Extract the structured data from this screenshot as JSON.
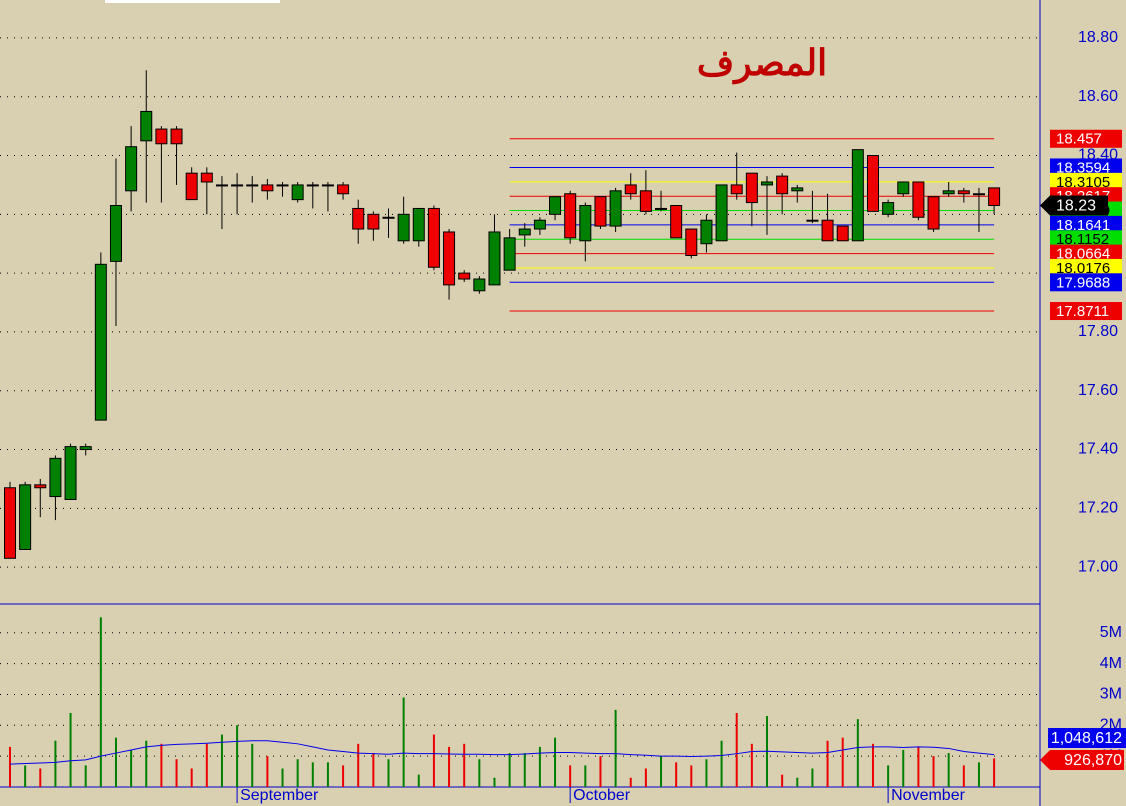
{
  "chart_data": {
    "type": "candlestick",
    "title": "المصرف",
    "categories": [
      null,
      null,
      null,
      null,
      null,
      null,
      null,
      null,
      null,
      null,
      null,
      null,
      null,
      null,
      null,
      "September",
      null,
      null,
      null,
      null,
      null,
      null,
      null,
      null,
      null,
      null,
      null,
      null,
      null,
      null,
      null,
      null,
      null,
      null,
      null,
      null,
      null,
      "October",
      null,
      null,
      null,
      null,
      null,
      null,
      null,
      null,
      null,
      null,
      null,
      null,
      null,
      null,
      null,
      null,
      null,
      null,
      null,
      null,
      "November",
      null,
      null,
      null,
      null,
      null,
      null,
      null
    ],
    "open": [
      17.27,
      17.06,
      17.28,
      17.24,
      17.23,
      17.4,
      17.5,
      18.04,
      18.28,
      18.45,
      18.49,
      18.49,
      18.34,
      18.34,
      18.3,
      18.3,
      18.3,
      18.3,
      18.3,
      18.25,
      18.3,
      18.3,
      18.3,
      18.22,
      18.2,
      18.19,
      18.11,
      18.11,
      18.22,
      18.14,
      18.0,
      17.94,
      17.96,
      18.01,
      18.13,
      18.15,
      18.2,
      18.27,
      18.11,
      18.26,
      18.16,
      18.3,
      18.28,
      18.22,
      18.23,
      18.15,
      18.1,
      18.11,
      18.3,
      18.34,
      18.3,
      18.33,
      18.28,
      18.18,
      18.18,
      18.16,
      18.11,
      18.4,
      18.2,
      18.27,
      18.31,
      18.26,
      18.27,
      18.28,
      18.27,
      18.29
    ],
    "high": [
      17.29,
      17.29,
      17.3,
      17.38,
      17.42,
      17.42,
      18.07,
      18.39,
      18.5,
      18.69,
      18.5,
      18.5,
      18.36,
      18.36,
      18.33,
      18.34,
      18.33,
      18.32,
      18.31,
      18.31,
      18.31,
      18.31,
      18.31,
      18.25,
      18.21,
      18.22,
      18.26,
      18.22,
      18.23,
      18.15,
      18.01,
      17.99,
      18.2,
      18.15,
      18.17,
      18.19,
      18.26,
      18.28,
      18.24,
      18.26,
      18.29,
      18.34,
      18.35,
      18.28,
      18.23,
      18.15,
      18.2,
      18.3,
      18.41,
      18.34,
      18.33,
      18.34,
      18.3,
      18.28,
      18.27,
      18.16,
      18.42,
      18.4,
      18.25,
      18.31,
      18.31,
      18.26,
      18.31,
      18.29,
      18.29,
      18.29
    ],
    "low": [
      17.03,
      17.06,
      17.17,
      17.16,
      17.23,
      17.38,
      17.5,
      17.82,
      18.21,
      18.24,
      18.24,
      18.3,
      18.25,
      18.2,
      18.15,
      18.2,
      18.24,
      18.25,
      18.26,
      18.24,
      18.22,
      18.21,
      18.25,
      18.1,
      18.11,
      18.12,
      18.1,
      18.09,
      18.01,
      17.91,
      17.97,
      17.93,
      17.96,
      18.01,
      18.09,
      18.13,
      18.18,
      18.1,
      18.04,
      18.15,
      18.14,
      18.25,
      18.2,
      18.21,
      18.12,
      18.05,
      18.07,
      18.11,
      18.25,
      18.16,
      18.13,
      18.2,
      18.24,
      18.17,
      18.11,
      18.11,
      18.11,
      18.21,
      18.19,
      18.26,
      18.18,
      18.14,
      18.26,
      18.24,
      18.14,
      18.2
    ],
    "close": [
      17.03,
      17.28,
      17.27,
      17.37,
      17.41,
      17.41,
      18.03,
      18.23,
      18.43,
      18.55,
      18.44,
      18.44,
      18.25,
      18.31,
      18.3,
      18.3,
      18.3,
      18.28,
      18.3,
      18.3,
      18.3,
      18.3,
      18.27,
      18.15,
      18.15,
      18.19,
      18.2,
      18.22,
      18.02,
      17.96,
      17.98,
      17.98,
      18.14,
      18.12,
      18.15,
      18.18,
      18.26,
      18.12,
      18.23,
      18.16,
      18.28,
      18.27,
      18.21,
      18.22,
      18.12,
      18.06,
      18.18,
      18.3,
      18.27,
      18.24,
      18.31,
      18.27,
      18.29,
      18.18,
      18.11,
      18.11,
      18.42,
      18.21,
      18.24,
      18.31,
      18.19,
      18.15,
      18.28,
      18.27,
      18.27,
      18.23
    ],
    "up_color": "#008000",
    "down_color": "#ee0000",
    "ylim": [
      16.878,
      18.929
    ],
    "yticks": [
      {
        "value": 18.8,
        "label": "18.80"
      },
      {
        "value": 18.6,
        "label": "18.60"
      },
      {
        "value": 18.4,
        "label": "18.40"
      },
      {
        "value": 18.2,
        "label": "18.20"
      },
      {
        "value": 18.0,
        "label": "18.00"
      },
      {
        "value": 17.8,
        "label": "17.80"
      },
      {
        "value": 17.6,
        "label": "17.60"
      },
      {
        "value": 17.4,
        "label": "17.40"
      },
      {
        "value": 17.2,
        "label": "17.20"
      },
      {
        "value": 17.0,
        "label": "17.00"
      }
    ],
    "grid": true,
    "levels": [
      {
        "value": 18.457,
        "color": "#ee0000",
        "text_color": "#ffffff"
      },
      {
        "value": 18.3594,
        "color": "#0000ee",
        "text_color": "#ffffff"
      },
      {
        "value": 18.3105,
        "color": "#ffff00",
        "text_color": "#000000"
      },
      {
        "value": 18.2617,
        "color": "#ee0000",
        "text_color": "#ffffff"
      },
      {
        "value": 18.2129,
        "color": "#00dd00",
        "text_color": "#000000"
      },
      {
        "value": 18.1641,
        "color": "#0000ee",
        "text_color": "#ffffff"
      },
      {
        "value": 18.1152,
        "color": "#00dd00",
        "text_color": "#000000"
      },
      {
        "value": 18.0664,
        "color": "#ee0000",
        "text_color": "#ffffff"
      },
      {
        "value": 18.0176,
        "color": "#ffff00",
        "text_color": "#000000"
      },
      {
        "value": 17.9688,
        "color": "#0000ee",
        "text_color": "#ffffff"
      },
      {
        "value": 17.8711,
        "color": "#ee0000",
        "text_color": "#ffffff"
      }
    ],
    "last_price": 18.23,
    "volume": {
      "values": [
        1300000,
        700000,
        600000,
        1500000,
        2400000,
        700000,
        5500000,
        1600000,
        1200000,
        1500000,
        1400000,
        900000,
        600000,
        1400000,
        1700000,
        2000000,
        1400000,
        1000000,
        600000,
        900000,
        800000,
        800000,
        700000,
        1400000,
        1100000,
        900000,
        2900000,
        400000,
        1700000,
        1300000,
        1400000,
        900000,
        300000,
        1100000,
        1100000,
        1300000,
        1600000,
        700000,
        700000,
        1000000,
        2500000,
        300000,
        600000,
        1000000,
        800000,
        700000,
        900000,
        1500000,
        2400000,
        1400000,
        2300000,
        400000,
        300000,
        600000,
        1500000,
        1600000,
        2200000,
        1400000,
        700000,
        1200000,
        1300000,
        1000000,
        1100000,
        700000,
        800000,
        926870
      ],
      "ma": [
        740000,
        760000,
        780000,
        800000,
        850000,
        880000,
        1000000,
        1100000,
        1200000,
        1300000,
        1350000,
        1380000,
        1400000,
        1420000,
        1450000,
        1480000,
        1500000,
        1500000,
        1450000,
        1400000,
        1300000,
        1200000,
        1150000,
        1100000,
        1080000,
        1060000,
        1100000,
        1080000,
        1080000,
        1070000,
        1060000,
        1060000,
        1050000,
        1050000,
        1070000,
        1100000,
        1120000,
        1120000,
        1100000,
        1080000,
        1080000,
        1050000,
        1030000,
        1000000,
        1000000,
        990000,
        1000000,
        1020000,
        1080000,
        1150000,
        1160000,
        1140000,
        1120000,
        1100000,
        1120000,
        1200000,
        1280000,
        1300000,
        1300000,
        1280000,
        1300000,
        1290000,
        1250000,
        1150000,
        1100000,
        1048612
      ],
      "ma_color": "#0000ee",
      "ylim": [
        0,
        5900000
      ],
      "yticks": [
        {
          "value": 1000000,
          "label": "1M"
        },
        {
          "value": 2000000,
          "label": "2M"
        },
        {
          "value": 3000000,
          "label": "3M"
        },
        {
          "value": 4000000,
          "label": "4M"
        },
        {
          "value": 5000000,
          "label": "5M"
        }
      ],
      "markers": [
        {
          "value": 1048612,
          "label": "1,048,612",
          "color": "#0000ee"
        },
        {
          "value": 926870,
          "label": "926,870",
          "color": "#ee0000"
        }
      ]
    }
  }
}
